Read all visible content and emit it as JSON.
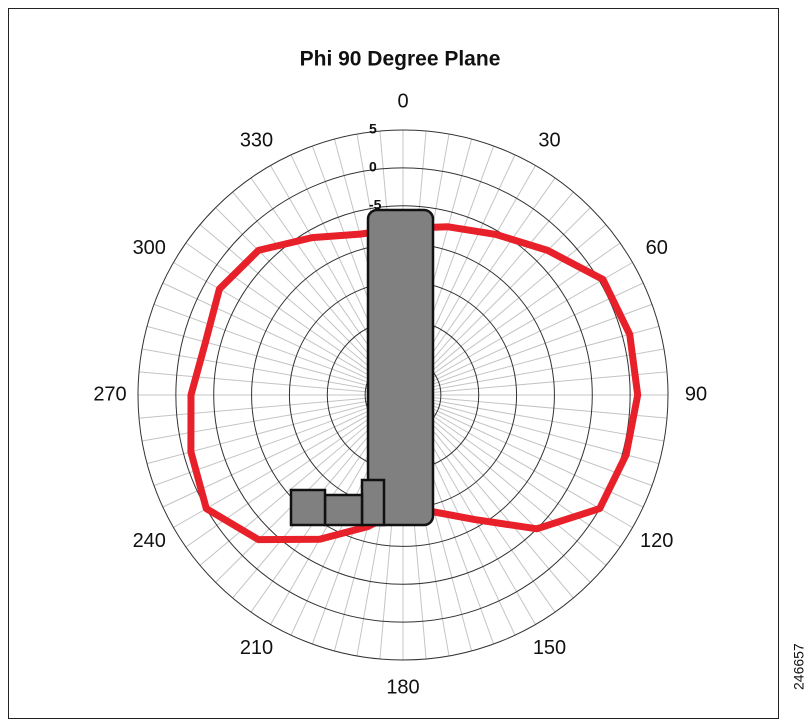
{
  "chart_data": {
    "type": "polar",
    "title": "Phi 90 Degree Plane",
    "theta": [
      0,
      15,
      30,
      45,
      60,
      75,
      90,
      105,
      120,
      135,
      150,
      165,
      180,
      195,
      210,
      225,
      240,
      255,
      270,
      285,
      300,
      315,
      330,
      345
    ],
    "series": [
      {
        "color": "#e8202a",
        "values": [
          -8,
          -7,
          -5.5,
          -3,
          0.5,
          1,
          1,
          0.5,
          0,
          -5,
          -11,
          -14,
          -15,
          -12,
          -8,
          -3,
          0,
          -1,
          -2,
          -3,
          -2,
          -3,
          -6,
          -8
        ]
      }
    ],
    "rlim": [
      -30,
      5
    ],
    "rticks": [
      5,
      0,
      -5,
      -10,
      -15,
      -20,
      -25,
      -30
    ],
    "thetaticks": [
      0,
      30,
      60,
      90,
      120,
      150,
      180,
      210,
      240,
      270,
      300,
      330
    ],
    "theta_grid_step": 5,
    "grid": true
  },
  "figure_id": "246657"
}
